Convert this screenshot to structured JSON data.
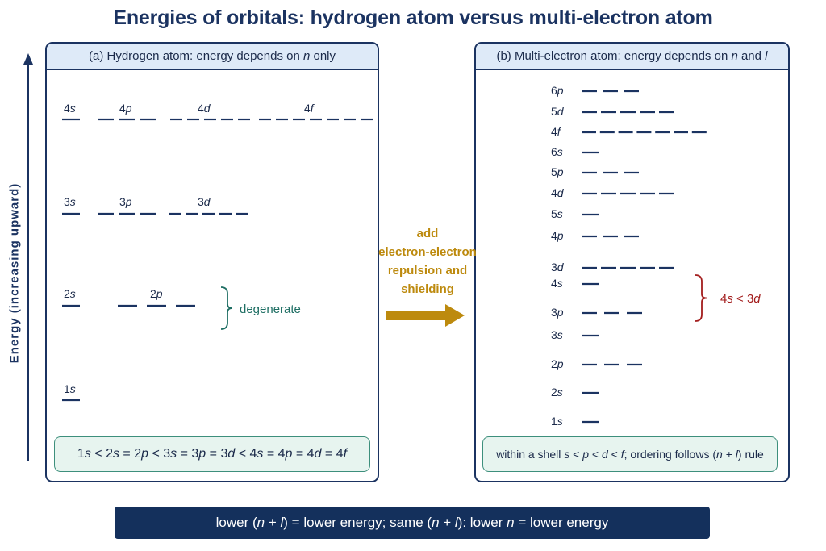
{
  "title": "Energies of orbitals: hydrogen atom versus multi-electron atom",
  "axis_label": "Energy (increasing upward)",
  "panel_a": {
    "header": "(a) Hydrogen atom: energy depends on n only",
    "levels": [
      {
        "label": "4s",
        "orbitals": 1
      },
      {
        "label": "4p",
        "orbitals": 3
      },
      {
        "label": "4d",
        "orbitals": 5
      },
      {
        "label": "4f",
        "orbitals": 7
      },
      {
        "label": "3s",
        "orbitals": 1
      },
      {
        "label": "3p",
        "orbitals": 3
      },
      {
        "label": "3d",
        "orbitals": 5
      },
      {
        "label": "2s",
        "orbitals": 1
      },
      {
        "label": "2p",
        "orbitals": 3
      },
      {
        "label": "1s",
        "orbitals": 1
      }
    ],
    "degenerate_label": "degenerate",
    "order_rule": "1s < 2s = 2p < 3s = 3p = 3d < 4s = 4p = 4d = 4f"
  },
  "arrow_label": [
    "add",
    "electron-electron",
    "repulsion and",
    "shielding"
  ],
  "panel_b": {
    "header": "(b) Multi-electron atom: energy depends on n and l",
    "levels": [
      {
        "label": "6p",
        "orbitals": 3
      },
      {
        "label": "5d",
        "orbitals": 5
      },
      {
        "label": "4f",
        "orbitals": 7
      },
      {
        "label": "6s",
        "orbitals": 1
      },
      {
        "label": "5p",
        "orbitals": 3
      },
      {
        "label": "4d",
        "orbitals": 5
      },
      {
        "label": "5s",
        "orbitals": 1
      },
      {
        "label": "4p",
        "orbitals": 3
      },
      {
        "label": "3d",
        "orbitals": 5
      },
      {
        "label": "4s",
        "orbitals": 1
      },
      {
        "label": "3p",
        "orbitals": 3
      },
      {
        "label": "3s",
        "orbitals": 1
      },
      {
        "label": "2p",
        "orbitals": 3
      },
      {
        "label": "2s",
        "orbitals": 1
      },
      {
        "label": "1s",
        "orbitals": 1
      }
    ],
    "comparison_label": "4s < 3d",
    "order_rule": "within a shell s < p < d < f; ordering follows (n + l) rule"
  },
  "bottom_rule": "lower (n + l) = lower energy; same (n + l): lower n = lower energy",
  "colors": {
    "navy": "#1b3361",
    "header_fill": "#deeaf8",
    "rule_fill": "#e7f4ef",
    "teal": "#1e6e63",
    "red": "#a31d1d",
    "gold": "#bd8a0e"
  }
}
